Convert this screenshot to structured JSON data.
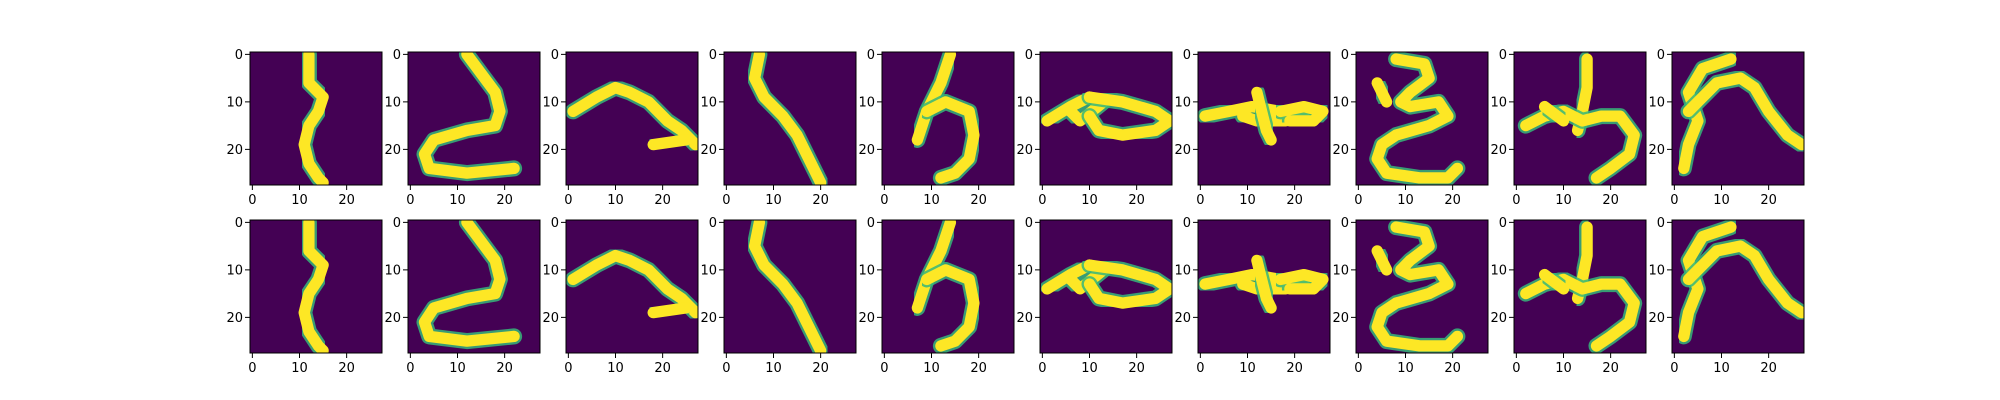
{
  "chart_data": {
    "type": "heatmap",
    "colormap": "viridis",
    "background_color": "#440154",
    "stroke_color": "#fde725",
    "grid_rows": 2,
    "grid_cols": 10,
    "image_size": 28,
    "axes": {
      "x_ticks": [
        0,
        10,
        20
      ],
      "y_ticks": [
        0,
        10,
        20
      ],
      "xlim": [
        -0.5,
        27.5
      ],
      "ylim": [
        27.5,
        -0.5
      ],
      "grid": false,
      "legend": false
    },
    "panels": [
      {
        "row": 0,
        "col": 0,
        "strokes": [
          [
            [
              12,
              0
            ],
            [
              12,
              6
            ],
            [
              15,
              9
            ],
            [
              14,
              12
            ],
            [
              12,
              15
            ],
            [
              11,
              19
            ],
            [
              12,
              23
            ],
            [
              14,
              26
            ],
            [
              15,
              27
            ]
          ]
        ]
      },
      {
        "row": 0,
        "col": 1,
        "strokes": [
          [
            [
              12,
              0
            ],
            [
              18,
              8
            ],
            [
              19,
              12
            ],
            [
              18,
              15
            ],
            [
              12,
              16
            ],
            [
              5,
              18
            ],
            [
              3,
              21
            ],
            [
              4,
              24
            ],
            [
              12,
              25
            ],
            [
              22,
              24
            ]
          ]
        ]
      },
      {
        "row": 0,
        "col": 2,
        "strokes": [
          [
            [
              1,
              12
            ],
            [
              6,
              9
            ],
            [
              10,
              7
            ],
            [
              13,
              8
            ],
            [
              17,
              10
            ],
            [
              21,
              14
            ],
            [
              24,
              16
            ],
            [
              27,
              19
            ]
          ],
          [
            [
              18,
              19
            ],
            [
              25,
              18
            ]
          ]
        ]
      },
      {
        "row": 0,
        "col": 3,
        "strokes": [
          [
            [
              7,
              0
            ],
            [
              6,
              5
            ],
            [
              8,
              9
            ],
            [
              12,
              13
            ],
            [
              15,
              17
            ],
            [
              17,
              21
            ],
            [
              19,
              25
            ],
            [
              20,
              27
            ]
          ]
        ]
      },
      {
        "row": 0,
        "col": 4,
        "strokes": [
          [
            [
              14,
              0
            ],
            [
              12,
              6
            ],
            [
              9,
              12
            ],
            [
              7,
              18
            ]
          ],
          [
            [
              9,
              12
            ],
            [
              13,
              10
            ],
            [
              18,
              12
            ],
            [
              19,
              17
            ],
            [
              18,
              22
            ],
            [
              15,
              25
            ],
            [
              12,
              26
            ]
          ]
        ]
      },
      {
        "row": 0,
        "col": 5,
        "strokes": [
          [
            [
              1,
              14
            ],
            [
              6,
              11
            ],
            [
              10,
              9
            ],
            [
              13,
              10
            ],
            [
              8,
              14
            ],
            [
              6,
              12
            ]
          ],
          [
            [
              10,
              9
            ],
            [
              17,
              10
            ],
            [
              24,
              12
            ],
            [
              27,
              14
            ],
            [
              24,
              16
            ],
            [
              17,
              17
            ],
            [
              12,
              16
            ],
            [
              10,
              13
            ]
          ]
        ]
      },
      {
        "row": 0,
        "col": 6,
        "strokes": [
          [
            [
              1,
              13
            ],
            [
              6,
              12
            ],
            [
              11,
              11
            ],
            [
              17,
              12
            ],
            [
              22,
              13
            ],
            [
              18,
              14
            ],
            [
              12,
              14
            ],
            [
              9,
              13
            ]
          ],
          [
            [
              12,
              8
            ],
            [
              13,
              12
            ],
            [
              14,
              16
            ],
            [
              15,
              18
            ]
          ],
          [
            [
              17,
              12
            ],
            [
              22,
              11
            ],
            [
              26,
              12
            ],
            [
              24,
              14
            ],
            [
              19,
              14
            ]
          ]
        ]
      },
      {
        "row": 0,
        "col": 7,
        "strokes": [
          [
            [
              8,
              1
            ],
            [
              14,
              2
            ],
            [
              15,
              5
            ],
            [
              11,
              8
            ],
            [
              9,
              10
            ],
            [
              11,
              11
            ],
            [
              17,
              10
            ],
            [
              19,
              13
            ],
            [
              15,
              15
            ],
            [
              8,
              17
            ],
            [
              5,
              19
            ],
            [
              4,
              22
            ],
            [
              6,
              25
            ],
            [
              13,
              26
            ],
            [
              19,
              26
            ],
            [
              21,
              24
            ]
          ],
          [
            [
              4,
              6
            ],
            [
              6,
              10
            ]
          ]
        ]
      },
      {
        "row": 0,
        "col": 8,
        "strokes": [
          [
            [
              15,
              1
            ],
            [
              15,
              7
            ],
            [
              14,
              12
            ],
            [
              13,
              16
            ]
          ],
          [
            [
              2,
              15
            ],
            [
              6,
              13
            ],
            [
              10,
              12
            ],
            [
              14,
              14
            ],
            [
              18,
              13
            ],
            [
              22,
              13
            ],
            [
              25,
              17
            ],
            [
              24,
              21
            ],
            [
              20,
              24
            ],
            [
              17,
              26
            ]
          ],
          [
            [
              6,
              11
            ],
            [
              10,
              14
            ]
          ]
        ]
      },
      {
        "row": 0,
        "col": 9,
        "strokes": [
          [
            [
              12,
              1
            ],
            [
              6,
              3
            ],
            [
              3,
              8
            ],
            [
              5,
              14
            ],
            [
              3,
              19
            ],
            [
              2,
              24
            ]
          ],
          [
            [
              3,
              12
            ],
            [
              9,
              6
            ],
            [
              14,
              5
            ],
            [
              17,
              7
            ],
            [
              20,
              12
            ],
            [
              24,
              17
            ],
            [
              27,
              19
            ]
          ]
        ]
      },
      {
        "row": 1,
        "col": 0,
        "strokes": [
          [
            [
              12,
              0
            ],
            [
              12,
              6
            ],
            [
              15,
              9
            ],
            [
              14,
              12
            ],
            [
              12,
              15
            ],
            [
              11,
              19
            ],
            [
              12,
              23
            ],
            [
              14,
              26
            ],
            [
              15,
              27
            ]
          ]
        ]
      },
      {
        "row": 1,
        "col": 1,
        "strokes": [
          [
            [
              12,
              0
            ],
            [
              18,
              8
            ],
            [
              19,
              12
            ],
            [
              18,
              15
            ],
            [
              12,
              16
            ],
            [
              5,
              18
            ],
            [
              3,
              21
            ],
            [
              4,
              24
            ],
            [
              12,
              25
            ],
            [
              22,
              24
            ]
          ]
        ]
      },
      {
        "row": 1,
        "col": 2,
        "strokes": [
          [
            [
              1,
              12
            ],
            [
              6,
              9
            ],
            [
              10,
              7
            ],
            [
              13,
              8
            ],
            [
              17,
              10
            ],
            [
              21,
              14
            ],
            [
              24,
              16
            ],
            [
              27,
              19
            ]
          ],
          [
            [
              18,
              19
            ],
            [
              25,
              18
            ]
          ]
        ]
      },
      {
        "row": 1,
        "col": 3,
        "strokes": [
          [
            [
              7,
              0
            ],
            [
              6,
              5
            ],
            [
              8,
              9
            ],
            [
              12,
              13
            ],
            [
              15,
              17
            ],
            [
              17,
              21
            ],
            [
              19,
              25
            ],
            [
              20,
              27
            ]
          ]
        ]
      },
      {
        "row": 1,
        "col": 4,
        "strokes": [
          [
            [
              14,
              0
            ],
            [
              12,
              6
            ],
            [
              9,
              12
            ],
            [
              7,
              18
            ]
          ],
          [
            [
              9,
              12
            ],
            [
              13,
              10
            ],
            [
              18,
              12
            ],
            [
              19,
              17
            ],
            [
              18,
              22
            ],
            [
              15,
              25
            ],
            [
              12,
              26
            ]
          ]
        ]
      },
      {
        "row": 1,
        "col": 5,
        "strokes": [
          [
            [
              1,
              14
            ],
            [
              6,
              11
            ],
            [
              10,
              9
            ],
            [
              13,
              10
            ],
            [
              8,
              14
            ],
            [
              6,
              12
            ]
          ],
          [
            [
              10,
              9
            ],
            [
              17,
              10
            ],
            [
              24,
              12
            ],
            [
              27,
              14
            ],
            [
              24,
              16
            ],
            [
              17,
              17
            ],
            [
              12,
              16
            ],
            [
              10,
              13
            ]
          ]
        ]
      },
      {
        "row": 1,
        "col": 6,
        "strokes": [
          [
            [
              1,
              13
            ],
            [
              6,
              12
            ],
            [
              11,
              11
            ],
            [
              17,
              12
            ],
            [
              22,
              13
            ],
            [
              18,
              14
            ],
            [
              12,
              14
            ],
            [
              9,
              13
            ]
          ],
          [
            [
              12,
              8
            ],
            [
              13,
              12
            ],
            [
              14,
              16
            ],
            [
              15,
              18
            ]
          ],
          [
            [
              17,
              12
            ],
            [
              22,
              11
            ],
            [
              26,
              12
            ],
            [
              24,
              14
            ],
            [
              19,
              14
            ]
          ]
        ]
      },
      {
        "row": 1,
        "col": 7,
        "strokes": [
          [
            [
              8,
              1
            ],
            [
              14,
              2
            ],
            [
              15,
              5
            ],
            [
              11,
              8
            ],
            [
              9,
              10
            ],
            [
              11,
              11
            ],
            [
              17,
              10
            ],
            [
              19,
              13
            ],
            [
              15,
              15
            ],
            [
              8,
              17
            ],
            [
              5,
              19
            ],
            [
              4,
              22
            ],
            [
              6,
              25
            ],
            [
              13,
              26
            ],
            [
              19,
              26
            ],
            [
              21,
              24
            ]
          ],
          [
            [
              4,
              6
            ],
            [
              6,
              10
            ]
          ]
        ]
      },
      {
        "row": 1,
        "col": 8,
        "strokes": [
          [
            [
              15,
              1
            ],
            [
              15,
              7
            ],
            [
              14,
              12
            ],
            [
              13,
              16
            ]
          ],
          [
            [
              2,
              15
            ],
            [
              6,
              13
            ],
            [
              10,
              12
            ],
            [
              14,
              14
            ],
            [
              18,
              13
            ],
            [
              22,
              13
            ],
            [
              25,
              17
            ],
            [
              24,
              21
            ],
            [
              20,
              24
            ],
            [
              17,
              26
            ]
          ],
          [
            [
              6,
              11
            ],
            [
              10,
              14
            ]
          ]
        ]
      },
      {
        "row": 1,
        "col": 9,
        "strokes": [
          [
            [
              12,
              1
            ],
            [
              6,
              3
            ],
            [
              3,
              8
            ],
            [
              5,
              14
            ],
            [
              3,
              19
            ],
            [
              2,
              24
            ]
          ],
          [
            [
              3,
              12
            ],
            [
              9,
              6
            ],
            [
              14,
              5
            ],
            [
              17,
              7
            ],
            [
              20,
              12
            ],
            [
              24,
              17
            ],
            [
              27,
              19
            ]
          ]
        ]
      }
    ]
  }
}
